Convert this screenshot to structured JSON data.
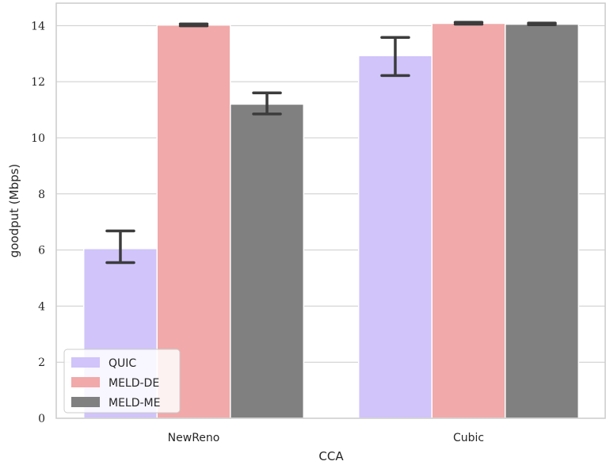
{
  "chart_data": {
    "type": "bar",
    "xlabel": "CCA",
    "ylabel": "goodput (Mbps)",
    "categories": [
      "NewReno",
      "Cubic"
    ],
    "ylim": [
      0,
      14.8
    ],
    "yticks": [
      0,
      2,
      4,
      6,
      8,
      10,
      12,
      14
    ],
    "grid": "horizontal",
    "legend_position": "bottom-left",
    "series": [
      {
        "name": "QUIC",
        "color": "#d0c4fa",
        "values": [
          6.05,
          12.93
        ],
        "err_low": [
          5.55,
          12.22
        ],
        "err_high": [
          6.68,
          13.58
        ]
      },
      {
        "name": "MELD-DE",
        "color": "#f1a9a9",
        "values": [
          14.02,
          14.08
        ],
        "err_low": [
          13.99,
          14.05
        ],
        "err_high": [
          14.06,
          14.12
        ]
      },
      {
        "name": "MELD-ME",
        "color": "#808080",
        "values": [
          11.2,
          14.05
        ],
        "err_low": [
          10.85,
          14.03
        ],
        "err_high": [
          11.6,
          14.09
        ]
      }
    ]
  }
}
